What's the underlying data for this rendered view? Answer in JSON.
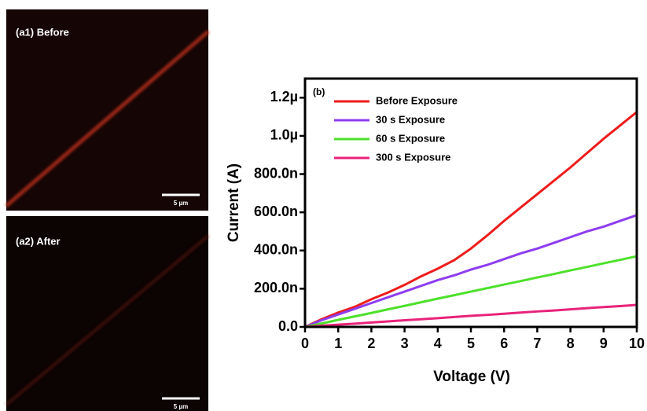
{
  "panels": [
    {
      "label": "(a1) Before",
      "scale_bar": "5 µm"
    },
    {
      "label": "(a2) After",
      "scale_bar": "5 µm"
    }
  ],
  "chart_data": {
    "type": "line",
    "annotation": "(b)",
    "x_label": "Voltage (V)",
    "y_label": "Current (A)",
    "x": [
      0,
      0.5,
      1,
      1.5,
      2,
      2.5,
      3,
      3.5,
      4,
      4.5,
      5,
      5.5,
      6,
      6.5,
      7,
      7.5,
      8,
      8.5,
      9,
      9.5,
      10
    ],
    "series": [
      {
        "name": "Before Exposure",
        "color": "#ee1c1c",
        "values": [
          0,
          4e-08,
          7.5e-08,
          1.05e-07,
          1.45e-07,
          1.8e-07,
          2.2e-07,
          2.65e-07,
          3.05e-07,
          3.5e-07,
          4.1e-07,
          4.8e-07,
          5.55e-07,
          6.25e-07,
          6.95e-07,
          7.65e-07,
          8.35e-07,
          9.1e-07,
          9.85e-07,
          1.055e-06,
          1.125e-06
        ]
      },
      {
        "name": "30 s Exposure",
        "color": "#8e3cf0",
        "values": [
          0,
          3.5e-08,
          6.5e-08,
          9.5e-08,
          1.25e-07,
          1.55e-07,
          1.85e-07,
          2.15e-07,
          2.45e-07,
          2.7e-07,
          3e-07,
          3.25e-07,
          3.55e-07,
          3.85e-07,
          4.1e-07,
          4.4e-07,
          4.7e-07,
          5e-07,
          5.25e-07,
          5.55e-07,
          5.85e-07
        ]
      },
      {
        "name": "60 s Exposure",
        "color": "#4ee02c",
        "values": [
          0,
          1.8e-08,
          3.7e-08,
          5.5e-08,
          7.3e-08,
          9.2e-08,
          1.1e-07,
          1.29e-07,
          1.48e-07,
          1.66e-07,
          1.85e-07,
          2.03e-07,
          2.22e-07,
          2.4e-07,
          2.59e-07,
          2.77e-07,
          2.96e-07,
          3.14e-07,
          3.33e-07,
          3.51e-07,
          3.7e-07
        ]
      },
      {
        "name": "300 s Exposure",
        "color": "#e8237a",
        "values": [
          0,
          6e-09,
          1.2e-08,
          1.7e-08,
          2.3e-08,
          2.9e-08,
          3.5e-08,
          4e-08,
          4.6e-08,
          5.2e-08,
          5.8e-08,
          6.3e-08,
          6.9e-08,
          7.5e-08,
          8.1e-08,
          8.6e-08,
          9.2e-08,
          9.8e-08,
          1.04e-07,
          1.09e-07,
          1.15e-07
        ]
      }
    ],
    "xlim": [
      0,
      10
    ],
    "xticks": [
      0,
      1,
      2,
      3,
      4,
      5,
      6,
      7,
      8,
      9,
      10
    ],
    "ylim": [
      0,
      1.3e-06
    ],
    "yticks": [
      {
        "value": 0,
        "label": "0.0"
      },
      {
        "value": 2e-07,
        "label": "200.0n"
      },
      {
        "value": 4e-07,
        "label": "400.0n"
      },
      {
        "value": 6e-07,
        "label": "600.0n"
      },
      {
        "value": 8e-07,
        "label": "800.0n"
      },
      {
        "value": 1e-06,
        "label": "1.0µ"
      },
      {
        "value": 1.2e-06,
        "label": "1.2µ"
      }
    ],
    "legend": "upper left"
  }
}
